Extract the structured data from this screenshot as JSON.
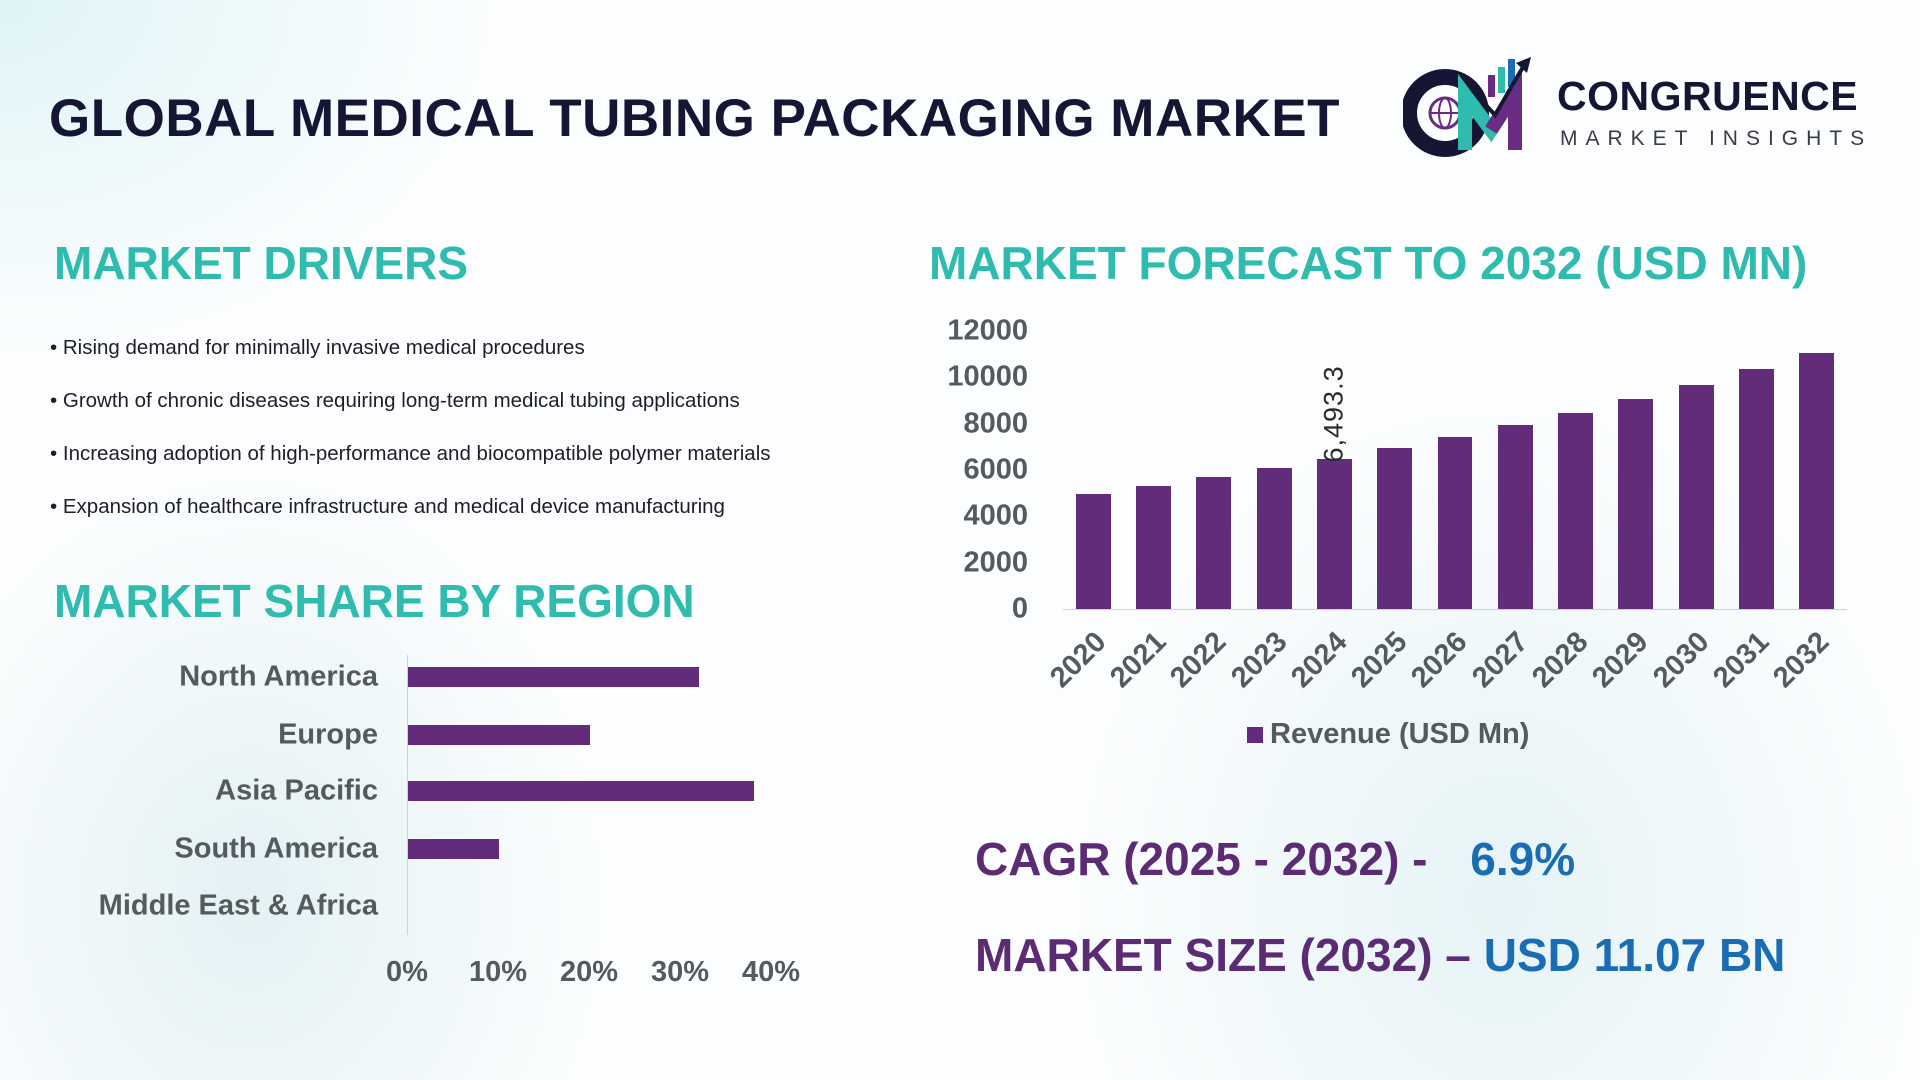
{
  "title": "GLOBAL MEDICAL TUBING PACKAGING MARKET",
  "logo": {
    "name": "CONGRUENCE",
    "sub": "MARKET INSIGHTS"
  },
  "drivers": {
    "title": "MARKET DRIVERS",
    "items": [
      "• Rising demand for minimally invasive medical procedures",
      "• Growth of chronic diseases requiring long-term medical tubing applications",
      "• Increasing adoption of high-performance  and biocompatible polymer materials",
      "• Expansion of healthcare infrastructure and medical device manufacturing"
    ]
  },
  "colors": {
    "bar": "#632c7a",
    "heading": "#2fbcae",
    "accent_blue": "#1a6db3",
    "accent_purple": "#5b2b74"
  },
  "chart_data": [
    {
      "type": "bar",
      "orientation": "horizontal",
      "title": "MARKET SHARE BY REGION",
      "categories": [
        "North America",
        "Europe",
        "Asia Pacific",
        "South America",
        "Middle East & Africa"
      ],
      "values": [
        32,
        20,
        38,
        10,
        0
      ],
      "unit": "%",
      "xlim": [
        0,
        40
      ],
      "xticks": [
        "0%",
        "10%",
        "20%",
        "30%",
        "40%"
      ]
    },
    {
      "type": "bar",
      "title": "MARKET FORECAST TO 2032 (USD MN)",
      "categories": [
        "2020",
        "2021",
        "2022",
        "2023",
        "2024",
        "2025",
        "2026",
        "2027",
        "2028",
        "2029",
        "2030",
        "2031",
        "2032"
      ],
      "series": [
        {
          "name": "Revenue (USD Mn)",
          "values": [
            4970,
            5320,
            5680,
            6070,
            6493.3,
            6940,
            7420,
            7930,
            8480,
            9060,
            9690,
            10360,
            11070
          ]
        }
      ],
      "data_labels": [
        {
          "category": "2024",
          "text": "6,493.3"
        }
      ],
      "ylim": [
        0,
        12000
      ],
      "yticks": [
        "0",
        "2000",
        "4000",
        "6000",
        "8000",
        "10000",
        "12000"
      ],
      "legend": "bottom"
    }
  ],
  "stats": {
    "cagr_label": "CAGR (2025 - 2032) - ",
    "cagr_value": "6.9%",
    "size_label": "MARKET SIZE (2032) – ",
    "size_value": "USD 11.07 BN"
  }
}
